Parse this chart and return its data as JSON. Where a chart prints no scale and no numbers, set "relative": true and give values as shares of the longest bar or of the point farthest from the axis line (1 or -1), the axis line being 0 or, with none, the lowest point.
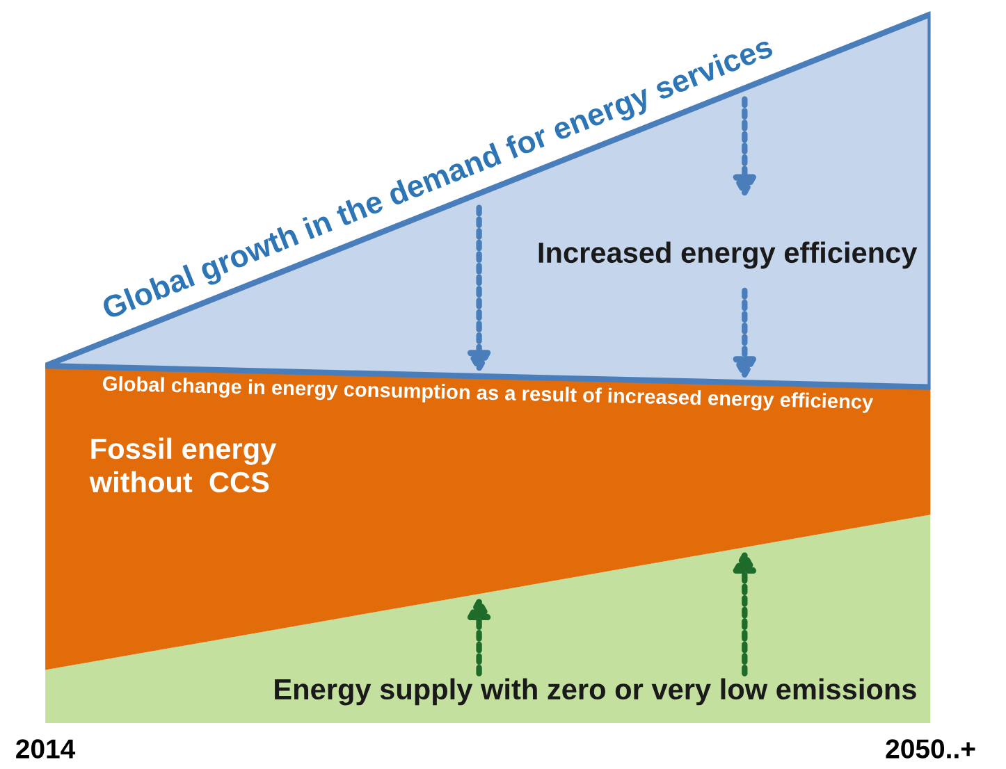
{
  "chart_data": {
    "type": "area",
    "stacked": true,
    "relative": true,
    "categories": [
      "2014",
      "2050..+"
    ],
    "series": [
      {
        "name": "Energy supply with zero or very low emissions",
        "color": "#c4e09f",
        "values": [
          0.075,
          0.294
        ]
      },
      {
        "name": "Fossil energy\nwithout  CCS",
        "color": "#e36c0a",
        "values": [
          0.429,
          0.18
        ]
      },
      {
        "name": "Increased energy efficiency",
        "color": "#c5d5ec",
        "values": [
          0,
          0.526
        ]
      }
    ],
    "annotations": [
      "Global growth in the demand for energy services",
      "Global change in energy consumption as a result of increased energy efficiency"
    ],
    "grid": false,
    "legend": false
  }
}
